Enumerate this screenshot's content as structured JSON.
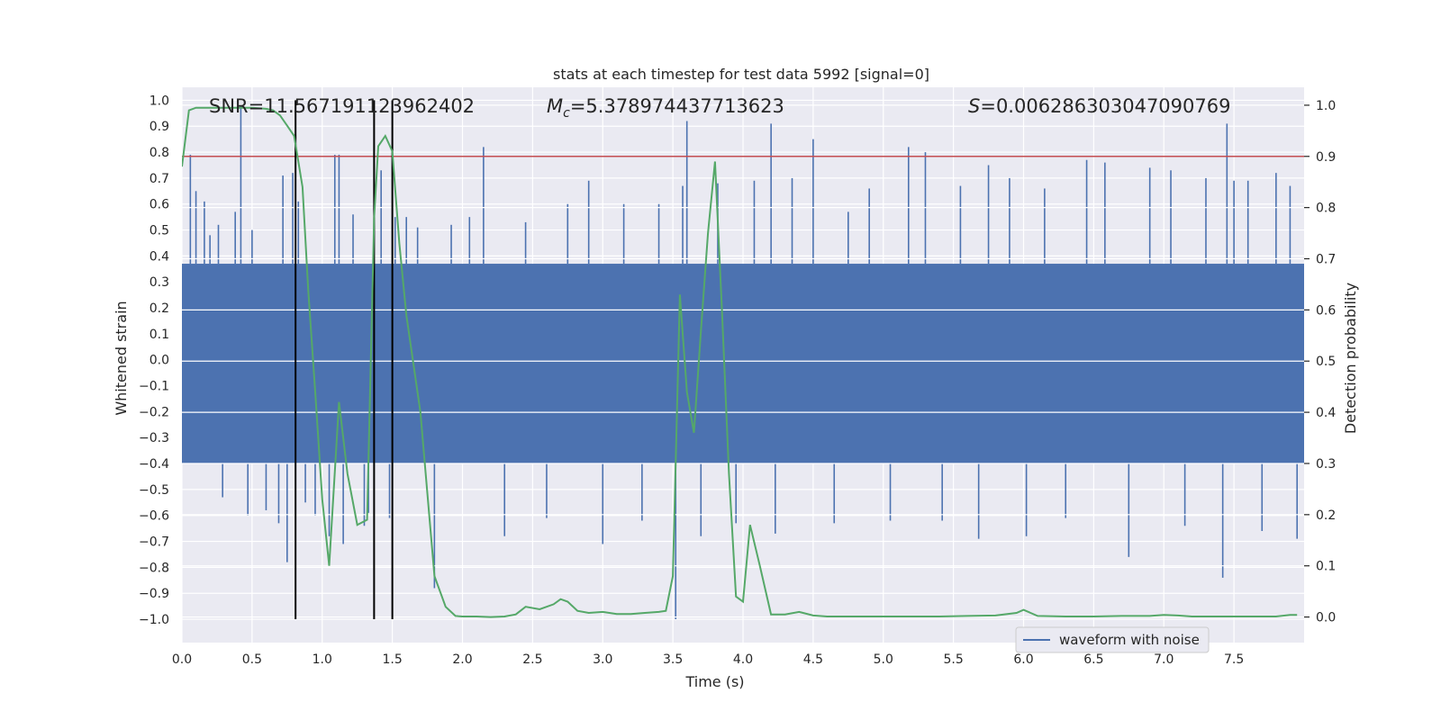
{
  "chart_data": {
    "type": "line",
    "title": "stats at each timestep for test data 5992 [signal=0]",
    "xlabel": "Time (s)",
    "ylabel_left": "Whitened strain",
    "ylabel_right": "Detection probability",
    "xlim": [
      0,
      8.0
    ],
    "ylim_left": [
      -1.09,
      1.05
    ],
    "ylim_right": [
      -0.05,
      1.035
    ],
    "x_ticks": [
      0.0,
      0.5,
      1.0,
      1.5,
      2.0,
      2.5,
      3.0,
      3.5,
      4.0,
      4.5,
      5.0,
      5.5,
      6.0,
      6.5,
      7.0,
      7.5
    ],
    "x_tick_labels": [
      "0.0",
      "0.5",
      "1.0",
      "1.5",
      "2.0",
      "2.5",
      "3.0",
      "3.5",
      "4.0",
      "4.5",
      "5.0",
      "5.5",
      "6.0",
      "6.5",
      "7.0",
      "7.5"
    ],
    "y_left_ticks": [
      1.0,
      0.9,
      0.8,
      0.7,
      0.6,
      0.5,
      0.4,
      0.3,
      0.2,
      0.1,
      0.0,
      -0.1,
      -0.2,
      -0.3,
      -0.4,
      -0.5,
      -0.6,
      -0.7,
      -0.8,
      -0.9,
      -1.0
    ],
    "y_left_tick_labels": [
      "1.0",
      "0.9",
      "0.8",
      "0.7",
      "0.6",
      "0.5",
      "0.4",
      "0.3",
      "0.2",
      "0.1",
      "0.0",
      "−0.1",
      "−0.2",
      "−0.3",
      "−0.4",
      "−0.5",
      "−0.6",
      "−0.7",
      "−0.8",
      "−0.9",
      "−1.0"
    ],
    "y_right_ticks": [
      1.0,
      0.9,
      0.8,
      0.7,
      0.6,
      0.5,
      0.4,
      0.3,
      0.2,
      0.1,
      0.0
    ],
    "y_right_tick_labels": [
      "1.0",
      "0.9",
      "0.8",
      "0.7",
      "0.6",
      "0.5",
      "0.4",
      "0.3",
      "0.2",
      "0.1",
      "0.0"
    ],
    "grid": true,
    "legend": {
      "entries": [
        "waveform with noise"
      ],
      "position": "lower-right"
    },
    "annotations": {
      "snr": "SNR=11.567191123962402",
      "mc_symbol": "M",
      "mc_sub": "c",
      "mc_value": "=5.378974437713623",
      "s_symbol": "S",
      "s_value": "=0.006286303047090769"
    },
    "threshold": {
      "axis": "right",
      "value": 0.9
    },
    "event_lines": {
      "axis": "left",
      "x": [
        0.81,
        1.37,
        1.5
      ],
      "y_range": [
        -1.0,
        1.0
      ]
    },
    "waveform": {
      "name": "waveform with noise",
      "axis": "left",
      "envelope_upper": 0.37,
      "envelope_lower": -0.4,
      "spikes": [
        [
          0.06,
          0.79
        ],
        [
          0.1,
          0.65
        ],
        [
          0.16,
          0.61
        ],
        [
          0.2,
          0.48
        ],
        [
          0.26,
          0.52
        ],
        [
          0.29,
          -0.53
        ],
        [
          0.38,
          0.57
        ],
        [
          0.42,
          0.98
        ],
        [
          0.47,
          -0.6
        ],
        [
          0.5,
          0.5
        ],
        [
          0.6,
          -0.58
        ],
        [
          0.69,
          -0.63
        ],
        [
          0.72,
          0.71
        ],
        [
          0.75,
          -0.78
        ],
        [
          0.79,
          0.72
        ],
        [
          0.83,
          0.61
        ],
        [
          0.88,
          -0.55
        ],
        [
          0.95,
          -0.6
        ],
        [
          1.05,
          -0.68
        ],
        [
          1.09,
          0.79
        ],
        [
          1.12,
          0.79
        ],
        [
          1.15,
          -0.71
        ],
        [
          1.22,
          0.56
        ],
        [
          1.3,
          -0.64
        ],
        [
          1.33,
          -0.59
        ],
        [
          1.42,
          0.73
        ],
        [
          1.48,
          -0.61
        ],
        [
          1.52,
          0.55
        ],
        [
          1.6,
          0.55
        ],
        [
          1.68,
          0.51
        ],
        [
          1.8,
          -0.88
        ],
        [
          1.92,
          0.52
        ],
        [
          2.05,
          0.55
        ],
        [
          2.15,
          0.82
        ],
        [
          2.3,
          -0.68
        ],
        [
          2.45,
          0.53
        ],
        [
          2.6,
          -0.61
        ],
        [
          2.75,
          0.6
        ],
        [
          2.9,
          0.69
        ],
        [
          3.0,
          -0.71
        ],
        [
          3.15,
          0.6
        ],
        [
          3.28,
          -0.62
        ],
        [
          3.4,
          0.6
        ],
        [
          3.52,
          -1.0
        ],
        [
          3.57,
          0.67
        ],
        [
          3.6,
          0.92
        ],
        [
          3.7,
          -0.68
        ],
        [
          3.82,
          0.68
        ],
        [
          3.95,
          -0.63
        ],
        [
          4.08,
          0.69
        ],
        [
          4.2,
          0.91
        ],
        [
          4.23,
          -0.67
        ],
        [
          4.35,
          0.7
        ],
        [
          4.5,
          0.85
        ],
        [
          4.65,
          -0.63
        ],
        [
          4.75,
          0.57
        ],
        [
          4.9,
          0.66
        ],
        [
          5.05,
          -0.62
        ],
        [
          5.18,
          0.82
        ],
        [
          5.3,
          0.8
        ],
        [
          5.42,
          -0.62
        ],
        [
          5.55,
          0.67
        ],
        [
          5.68,
          -0.69
        ],
        [
          5.75,
          0.75
        ],
        [
          5.9,
          0.7
        ],
        [
          6.02,
          -0.68
        ],
        [
          6.15,
          0.66
        ],
        [
          6.3,
          -0.61
        ],
        [
          6.45,
          0.77
        ],
        [
          6.58,
          0.76
        ],
        [
          6.75,
          -0.76
        ],
        [
          6.9,
          0.74
        ],
        [
          7.05,
          0.73
        ],
        [
          7.15,
          -0.64
        ],
        [
          7.3,
          0.7
        ],
        [
          7.42,
          -0.84
        ],
        [
          7.45,
          0.91
        ],
        [
          7.5,
          0.69
        ],
        [
          7.6,
          0.69
        ],
        [
          7.7,
          -0.66
        ],
        [
          7.8,
          0.72
        ],
        [
          7.9,
          0.67
        ],
        [
          7.95,
          -0.69
        ]
      ]
    },
    "detection_probability": {
      "axis": "right",
      "x": [
        0.0,
        0.05,
        0.1,
        0.2,
        0.3,
        0.4,
        0.5,
        0.6,
        0.65,
        0.7,
        0.75,
        0.8,
        0.86,
        0.9,
        0.95,
        1.0,
        1.05,
        1.12,
        1.18,
        1.25,
        1.32,
        1.37,
        1.4,
        1.45,
        1.5,
        1.55,
        1.6,
        1.7,
        1.8,
        1.88,
        1.95,
        2.0,
        2.1,
        2.2,
        2.3,
        2.38,
        2.45,
        2.55,
        2.65,
        2.7,
        2.75,
        2.82,
        2.9,
        3.0,
        3.1,
        3.2,
        3.3,
        3.4,
        3.45,
        3.5,
        3.55,
        3.6,
        3.65,
        3.7,
        3.75,
        3.8,
        3.85,
        3.9,
        3.95,
        4.0,
        4.05,
        4.12,
        4.2,
        4.3,
        4.4,
        4.5,
        4.6,
        4.8,
        5.0,
        5.2,
        5.4,
        5.6,
        5.8,
        5.95,
        6.0,
        6.05,
        6.1,
        6.3,
        6.5,
        6.7,
        6.9,
        7.0,
        7.1,
        7.2,
        7.4,
        7.6,
        7.8,
        7.9,
        7.95
      ],
      "y": [
        0.88,
        0.99,
        0.995,
        0.995,
        0.995,
        0.995,
        0.995,
        0.993,
        0.99,
        0.98,
        0.96,
        0.94,
        0.84,
        0.64,
        0.44,
        0.23,
        0.1,
        0.42,
        0.28,
        0.18,
        0.19,
        0.78,
        0.92,
        0.94,
        0.91,
        0.73,
        0.59,
        0.4,
        0.08,
        0.02,
        0.002,
        0.001,
        0.001,
        0.0,
        0.001,
        0.005,
        0.02,
        0.015,
        0.025,
        0.035,
        0.03,
        0.012,
        0.008,
        0.01,
        0.006,
        0.006,
        0.008,
        0.01,
        0.012,
        0.08,
        0.63,
        0.44,
        0.36,
        0.56,
        0.75,
        0.89,
        0.6,
        0.28,
        0.04,
        0.03,
        0.18,
        0.1,
        0.005,
        0.005,
        0.01,
        0.003,
        0.001,
        0.001,
        0.001,
        0.001,
        0.001,
        0.002,
        0.003,
        0.008,
        0.014,
        0.008,
        0.002,
        0.001,
        0.001,
        0.002,
        0.002,
        0.004,
        0.003,
        0.001,
        0.001,
        0.001,
        0.001,
        0.004,
        0.004
      ]
    },
    "colors": {
      "axes_background": "#eaeaf2",
      "grid": "#ffffff",
      "waveform": "#4c72b0",
      "detection_probability": "#55a868",
      "threshold": "#c44e52",
      "event_lines": "#000000",
      "text": "#262626"
    }
  }
}
